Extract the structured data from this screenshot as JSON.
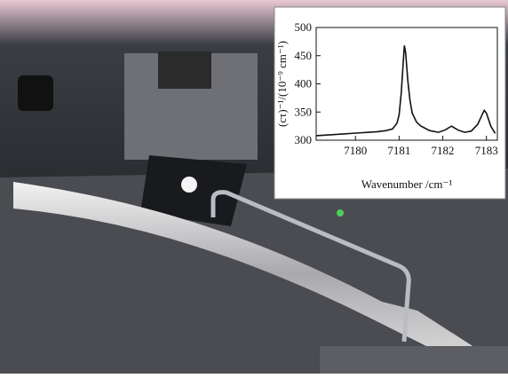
{
  "chart_data": {
    "type": "line",
    "x_label": "Wavenumber /cm⁻¹",
    "y_label": "(cτ)⁻¹/(10⁻⁹ cm⁻¹)",
    "x": [
      7179.1,
      7179.3,
      7179.5,
      7179.7,
      7179.9,
      7180.1,
      7180.3,
      7180.5,
      7180.7,
      7180.85,
      7180.95,
      7181.0,
      7181.05,
      7181.1,
      7181.12,
      7181.15,
      7181.2,
      7181.25,
      7181.3,
      7181.4,
      7181.5,
      7181.7,
      7181.9,
      7182.05,
      7182.2,
      7182.35,
      7182.5,
      7182.65,
      7182.8,
      7182.9,
      7182.95,
      7183.0,
      7183.1,
      7183.2
    ],
    "series": [
      {
        "color": "#111111",
        "values": [
          308,
          309,
          310,
          311,
          312,
          313,
          314,
          315,
          317,
          320,
          330,
          345,
          385,
          445,
          468,
          455,
          405,
          370,
          348,
          332,
          325,
          317,
          314,
          318,
          325,
          318,
          314,
          316,
          328,
          345,
          353,
          348,
          325,
          312
        ]
      }
    ],
    "xlim": [
      7179.1,
      7183.25
    ],
    "xticks": [
      7180,
      7181,
      7182,
      7183
    ],
    "ylim": [
      300,
      500
    ],
    "yticks": [
      300,
      350,
      400,
      450,
      500
    ]
  }
}
